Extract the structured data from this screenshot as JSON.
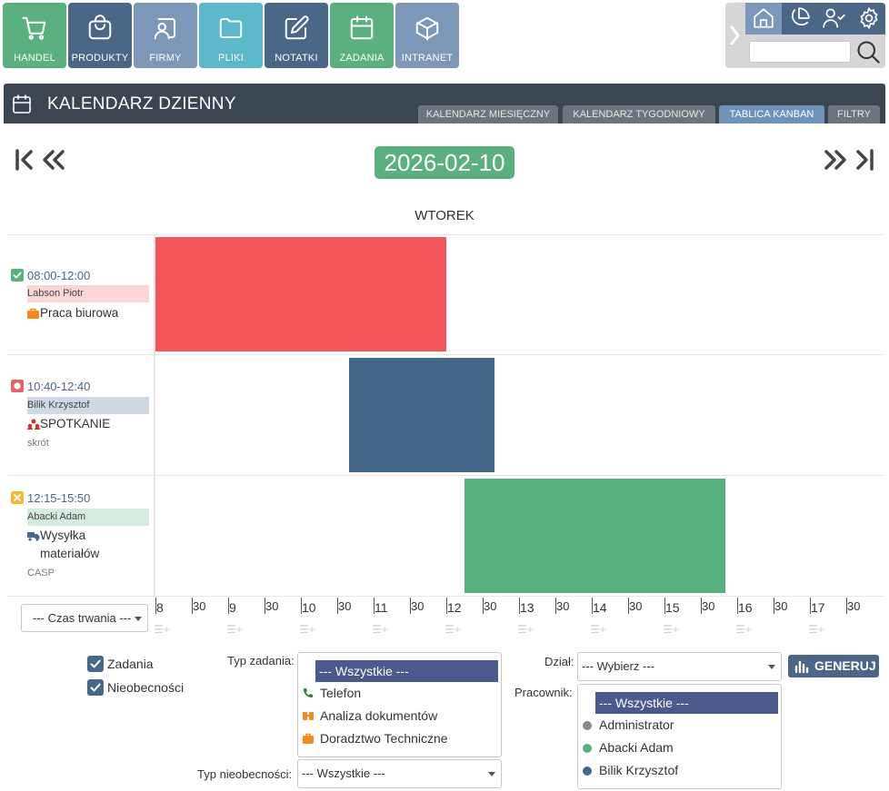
{
  "modules": [
    {
      "label": "HANDEL",
      "icon": "cart-icon",
      "color": "#5bb07f"
    },
    {
      "label": "PRODUKTY",
      "icon": "shopping-bag-icon",
      "color": "#4a6787"
    },
    {
      "label": "FIRMY",
      "icon": "contact-card-icon",
      "color": "#7d97b8"
    },
    {
      "label": "PLIKI",
      "icon": "folder-icon",
      "color": "#5bb9c9"
    },
    {
      "label": "NOTATKI",
      "icon": "edit-icon",
      "color": "#4a6787"
    },
    {
      "label": "ZADANIA",
      "icon": "calendar-icon",
      "color": "#5bb07f"
    },
    {
      "label": "INTRANET",
      "icon": "cube-icon",
      "color": "#7d97b8"
    }
  ],
  "search": {
    "value": ""
  },
  "header": {
    "title": "KALENDARZ DZIENNY",
    "tabs": [
      "KALENDARZ MIESIĘCZNY",
      "KALENDARZ TYGODNIOWY",
      "TABLICA KANBAN",
      "FILTRY"
    ]
  },
  "nav": {
    "date": "2026-02-10",
    "day_name": "WTOREK"
  },
  "events": [
    {
      "time": "08:00-12:00",
      "person": "Labson Piotr",
      "type": "Praca biurowa",
      "note": "",
      "status": "done",
      "color": "#f2565b",
      "person_bg": "#fbd6d7",
      "start_hour": 8.0,
      "end_hour": 12.0
    },
    {
      "time": "10:40-12:40",
      "person": "Bilik Krzysztof",
      "type": "SPOTKANIE",
      "note": "skrót",
      "status": "stopped",
      "color": "#456789",
      "person_bg": "#cfd9e3",
      "start_hour": 10.667,
      "end_hour": 12.667
    },
    {
      "time": "12:15-15:50",
      "person": "Abacki Adam",
      "type": "Wysyłka materiałów",
      "note": "CASP",
      "status": "cancelled",
      "color": "#57b07d",
      "person_bg": "#d3ecde",
      "start_hour": 12.25,
      "end_hour": 15.833
    }
  ],
  "axis": {
    "hours": [
      "8",
      "9",
      "10",
      "11",
      "12",
      "13",
      "14",
      "15",
      "16",
      "17"
    ],
    "half_label": "30",
    "start_hour": 8,
    "end_hour": 18
  },
  "duration_select": {
    "value": "--- Czas trwania ---"
  },
  "filters": {
    "checkboxes": [
      {
        "label": "Zadania",
        "checked": true
      },
      {
        "label": "Nieobecności",
        "checked": true
      }
    ],
    "task_type_label": "Typ zadania:",
    "task_types": [
      {
        "label": "--- Wszystkie ---",
        "selected": true,
        "icon": ""
      },
      {
        "label": "Telefon",
        "selected": false,
        "icon": "phone-icon"
      },
      {
        "label": "Analiza dokumentów",
        "selected": false,
        "icon": "documents-icon"
      },
      {
        "label": "Doradztwo Techniczne",
        "selected": false,
        "icon": "briefcase-icon"
      }
    ],
    "absence_type_label": "Typ nieobecności:",
    "absence_type_value": "--- Wszystkie ---",
    "department_label": "Dział:",
    "department_value": "--- Wybierz ---",
    "employee_label": "Pracownik:",
    "employees": [
      {
        "label": "--- Wszystkie ---",
        "selected": true,
        "dot": ""
      },
      {
        "label": "Administrator",
        "selected": false,
        "dot": "#888888"
      },
      {
        "label": "Abacki Adam",
        "selected": false,
        "dot": "#5bb07f"
      },
      {
        "label": "Bilik Krzysztof",
        "selected": false,
        "dot": "#456789"
      }
    ],
    "generate_label": "GENERUJ"
  }
}
